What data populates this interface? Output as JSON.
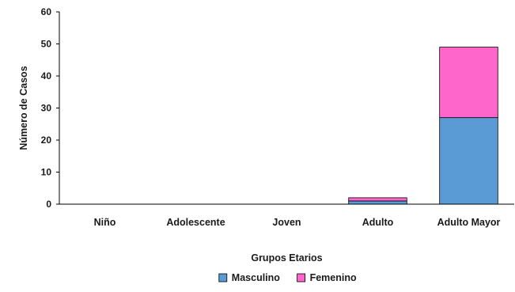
{
  "chart_data": {
    "type": "bar",
    "stacked": true,
    "categories": [
      "Niño",
      "Adolescente",
      "Joven",
      "Adulto",
      "Adulto Mayor"
    ],
    "series": [
      {
        "name": "Masculino",
        "values": [
          0,
          0,
          0,
          1,
          27
        ],
        "color": "#5b9bd5"
      },
      {
        "name": "Femenino",
        "values": [
          0,
          0,
          0,
          1,
          22
        ],
        "color": "#ff66cc"
      }
    ],
    "xlabel": "Grupos Etarios",
    "ylabel": "Número de Casos",
    "ylim": [
      0,
      60
    ],
    "yticks": [
      0,
      10,
      20,
      30,
      40,
      50,
      60
    ],
    "grid": false,
    "legend_position": "bottom"
  }
}
